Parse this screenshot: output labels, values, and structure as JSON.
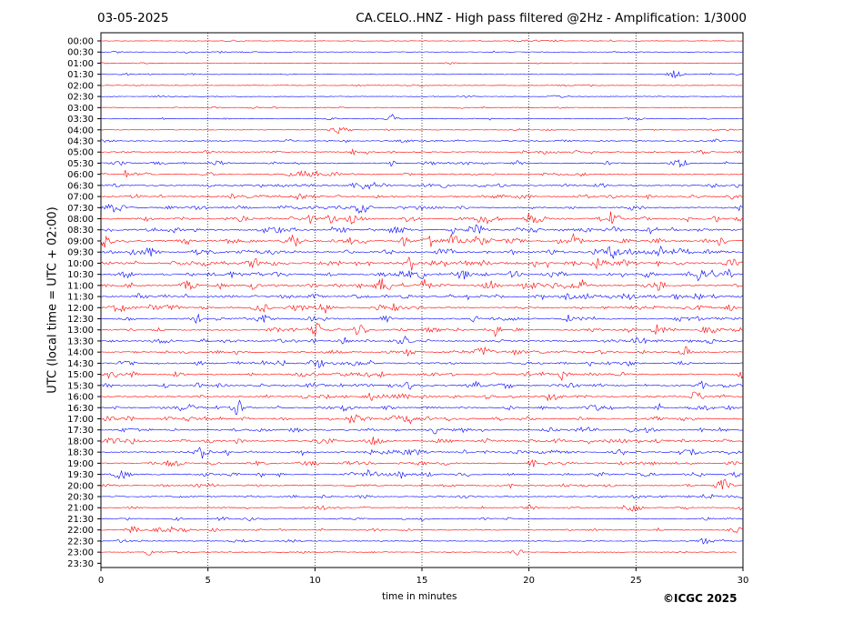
{
  "header": {
    "date": "03-05-2025",
    "title": "CA.CELO..HNZ - High pass filtered @2Hz - Amplification: 1/3000"
  },
  "footer": {
    "copyright": "©ICGC 2025"
  },
  "chart_data": {
    "type": "line",
    "title": "CA.CELO..HNZ - High pass filtered @2Hz - Amplification: 1/3000",
    "xlabel": "time in minutes",
    "ylabel": "UTC (local time = UTC + 02:00)",
    "xlim": [
      0,
      30
    ],
    "xticks": [
      0,
      5,
      10,
      15,
      20,
      25,
      30
    ],
    "rows": [
      "00:00",
      "00:30",
      "01:00",
      "01:30",
      "02:00",
      "02:30",
      "03:00",
      "03:30",
      "04:00",
      "04:30",
      "05:00",
      "05:30",
      "06:00",
      "06:30",
      "07:00",
      "07:30",
      "08:00",
      "08:30",
      "09:00",
      "09:30",
      "10:00",
      "10:30",
      "11:00",
      "11:30",
      "12:00",
      "12:30",
      "13:00",
      "13:30",
      "14:00",
      "14:30",
      "15:00",
      "15:30",
      "16:00",
      "16:30",
      "17:00",
      "17:30",
      "18:00",
      "18:30",
      "19:00",
      "19:30",
      "20:00",
      "20:30",
      "21:00",
      "21:30",
      "22:00",
      "22:30",
      "23:00",
      "23:30"
    ],
    "row_colors": [
      "#ff0000",
      "#0000ff"
    ],
    "activity": [
      0.05,
      0.08,
      0.05,
      0.08,
      0.05,
      0.07,
      0.1,
      0.15,
      0.12,
      0.25,
      0.35,
      0.4,
      0.45,
      0.5,
      0.55,
      0.6,
      0.7,
      0.8,
      0.8,
      0.75,
      0.85,
      0.8,
      0.75,
      0.7,
      0.7,
      0.65,
      0.6,
      0.55,
      0.5,
      0.6,
      0.55,
      0.6,
      0.55,
      0.6,
      0.6,
      0.55,
      0.65,
      0.6,
      0.55,
      0.5,
      0.4,
      0.35,
      0.35,
      0.3,
      0.35,
      0.25,
      0.15,
      0.0
    ],
    "grid": "vertical dotted at x ticks"
  }
}
